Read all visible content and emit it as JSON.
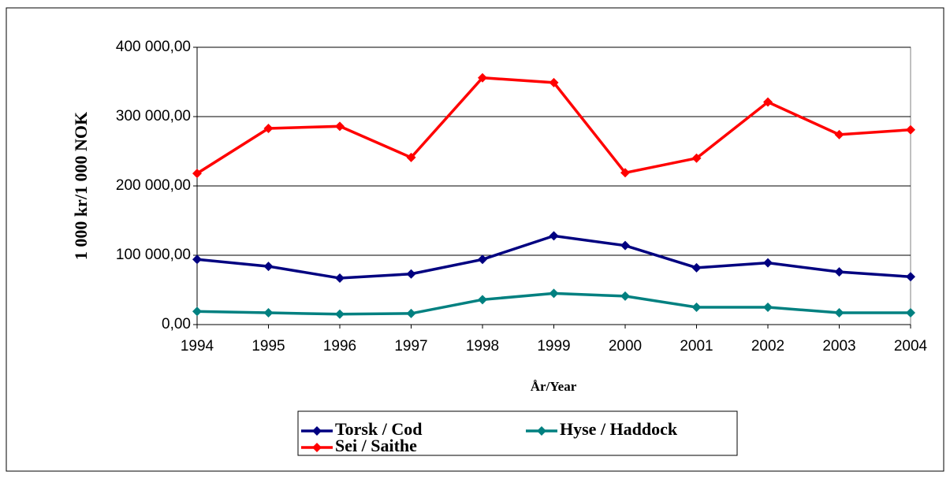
{
  "chart_data": {
    "type": "line",
    "y_label": "1 000 kr/1 000 NOK",
    "x_label": "År/Year",
    "categories": [
      "1994",
      "1995",
      "1996",
      "1997",
      "1998",
      "1999",
      "2000",
      "2001",
      "2002",
      "2003",
      "2004"
    ],
    "series": [
      {
        "name": "Torsk / Cod",
        "color": "#000080",
        "values": [
          94000,
          84000,
          67000,
          73000,
          94000,
          128000,
          114000,
          82000,
          89000,
          76000,
          69000
        ]
      },
      {
        "name": "Hyse / Haddock",
        "color": "#008080",
        "values": [
          19000,
          17000,
          15000,
          16000,
          36000,
          45000,
          41000,
          25000,
          25000,
          17000,
          17000
        ]
      },
      {
        "name": "Sei / Saithe",
        "color": "#ff0000",
        "values": [
          218000,
          283000,
          286000,
          241000,
          356000,
          349000,
          219000,
          240000,
          321000,
          274000,
          281000
        ]
      }
    ],
    "ylim": [
      0,
      400000
    ],
    "yticks": [
      {
        "value": 0,
        "label": "0,00"
      },
      {
        "value": 100000,
        "label": "100 000,00"
      },
      {
        "value": 200000,
        "label": "200 000,00"
      },
      {
        "value": 300000,
        "label": "300 000,00"
      },
      {
        "value": 400000,
        "label": "400 000,00"
      }
    ],
    "grid": true
  }
}
